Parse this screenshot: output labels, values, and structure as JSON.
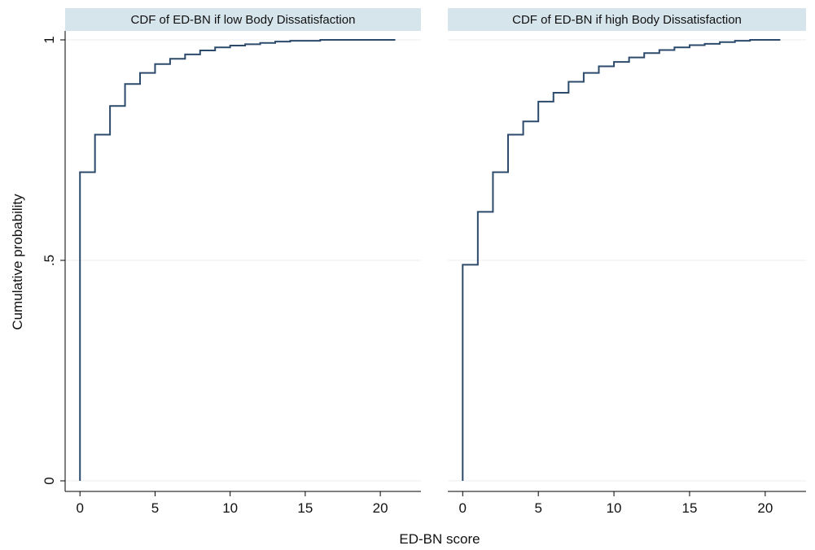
{
  "chart_data": {
    "type": "line",
    "step": true,
    "xlabel": "ED-BN score",
    "ylabel": "Cumulative probability",
    "xlim": [
      -0.5,
      22
    ],
    "ylim": [
      0,
      1
    ],
    "x_ticks": [
      0,
      5,
      10,
      15,
      20
    ],
    "x_tick_labels": [
      "0",
      "5",
      "10",
      "15",
      "20"
    ],
    "y_ticks": [
      0,
      0.5,
      1
    ],
    "y_tick_labels": [
      "0",
      ".5",
      "1"
    ],
    "grid": true,
    "line_color": "#2c4a6b",
    "panel_title_bg": "#d6e4ec",
    "panels": [
      {
        "title": "CDF of ED-BN if low Body Dissatisfaction",
        "x": [
          0,
          1,
          2,
          3,
          4,
          5,
          6,
          7,
          8,
          9,
          10,
          11,
          12,
          13,
          14,
          16,
          21
        ],
        "y": [
          0.7,
          0.785,
          0.85,
          0.9,
          0.925,
          0.945,
          0.957,
          0.967,
          0.976,
          0.983,
          0.987,
          0.99,
          0.993,
          0.996,
          0.998,
          1.0,
          1.0
        ]
      },
      {
        "title": "CDF of ED-BN if high Body Dissatisfaction",
        "x": [
          0,
          1,
          2,
          3,
          4,
          5,
          6,
          7,
          8,
          9,
          10,
          11,
          12,
          13,
          14,
          15,
          16,
          17,
          18,
          19,
          21
        ],
        "y": [
          0.49,
          0.61,
          0.7,
          0.785,
          0.815,
          0.86,
          0.88,
          0.905,
          0.925,
          0.94,
          0.95,
          0.96,
          0.97,
          0.977,
          0.983,
          0.988,
          0.991,
          0.995,
          0.998,
          1.0,
          1.0
        ]
      }
    ]
  }
}
